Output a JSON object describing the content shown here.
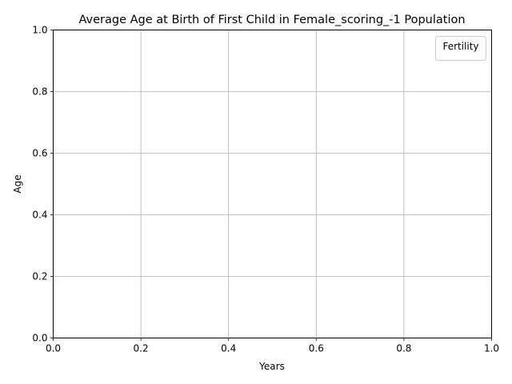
{
  "chart_data": {
    "type": "line",
    "title": "Average Age at Birth of First Child in Female_scoring_-1 Population",
    "xlabel": "Years",
    "ylabel": "Age",
    "xlim": [
      0.0,
      1.0
    ],
    "ylim": [
      0.0,
      1.0
    ],
    "xticks": [
      "0.0",
      "0.2",
      "0.4",
      "0.6",
      "0.8",
      "1.0"
    ],
    "yticks": [
      "0.0",
      "0.2",
      "0.4",
      "0.6",
      "0.8",
      "1.0"
    ],
    "grid": true,
    "legend": {
      "title": "Fertility",
      "placement": "top-right",
      "entries": []
    },
    "series": []
  },
  "colors": {
    "grid": "#b0b0b0",
    "axis": "#000000",
    "legend_border": "#cccccc"
  }
}
